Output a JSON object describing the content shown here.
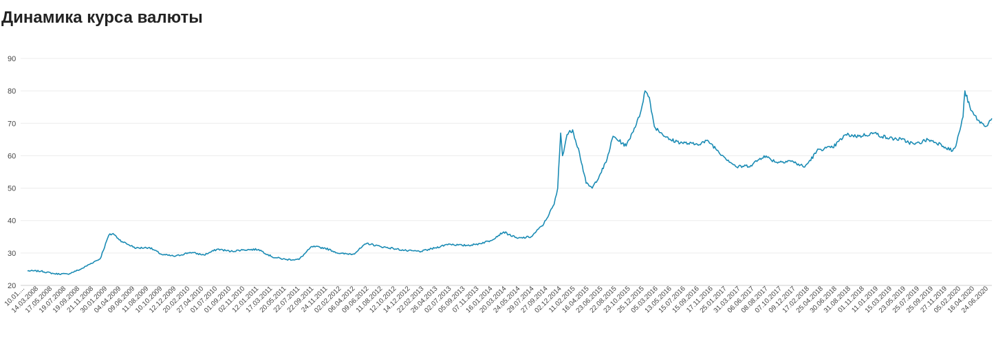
{
  "chart_data": {
    "type": "line",
    "title": "Динамика курса валюты",
    "xlabel": "",
    "ylabel": "",
    "ylim": [
      20,
      90
    ],
    "yticks": [
      20,
      30,
      40,
      50,
      60,
      70,
      80,
      90
    ],
    "grid": true,
    "color": "#1a8bb4",
    "xtick_labels": [
      "10.01....",
      "14.03.2008",
      "17.05.2008",
      "19.07.2008",
      "19.09.2008",
      "21.11.2008",
      "30.01.2009",
      "04.04.2009",
      "09.06.2009",
      "11.08.2009",
      "10.10.2009",
      "12.12.2009",
      "20.02.2010",
      "27.04.2010",
      "01.07.2010",
      "01.09.2010",
      "02.11.2010",
      "12.01.2011",
      "17.03.2011",
      "20.05.2011",
      "22.07.2011",
      "22.09.2011",
      "24.11.2011",
      "02.02.2012",
      "06.04.2012",
      "09.06.2012",
      "11.08.2012",
      "12.10.2012",
      "14.12.2012",
      "22.02.2013",
      "26.04.2013",
      "02.07.2013",
      "05.09.2013",
      "07.11.2013",
      "16.01.2014",
      "20.03.2014",
      "24.05.2014",
      "29.07.2014",
      "27.09.2014",
      "02.12.2014",
      "11.02.2015",
      "16.04.2015",
      "23.06.2015",
      "22.08.2015",
      "23.10.2015",
      "25.12.2015",
      "05.03.2016",
      "13.05.2016",
      "15.07.2016",
      "15.09.2016",
      "17.11.2016",
      "25.01.2017",
      "31.03.2017",
      "06.06.2017",
      "08.08.2017",
      "07.10.2017",
      "09.12.2017",
      "17.02.2018",
      "25.04.2018",
      "30.06.2018",
      "31.08.2018",
      "01.11.2018",
      "11.01.2019",
      "15.03.2019",
      "23.05.2019",
      "25.07.2019",
      "25.09.2019",
      "27.11.2019",
      "05.02.2020",
      "16.04.2020",
      "24.06.2020"
    ],
    "series": [
      {
        "x": [
          "2008-01-10",
          "2008-03-14",
          "2008-05-17",
          "2008-07-19",
          "2008-09-19",
          "2008-11-21",
          "2008-12-20",
          "2009-01-30",
          "2009-02-20",
          "2009-03-15",
          "2009-04-04",
          "2009-06-09",
          "2009-08-11",
          "2009-10-10",
          "2009-12-12",
          "2010-02-20",
          "2010-04-27",
          "2010-07-01",
          "2010-09-01",
          "2010-11-02",
          "2011-01-12",
          "2011-03-17",
          "2011-05-20",
          "2011-07-22",
          "2011-09-22",
          "2011-11-24",
          "2012-02-02",
          "2012-04-06",
          "2012-06-09",
          "2012-08-11",
          "2012-10-12",
          "2012-12-14",
          "2013-02-22",
          "2013-04-26",
          "2013-07-02",
          "2013-09-05",
          "2013-11-07",
          "2014-01-16",
          "2014-03-20",
          "2014-05-24",
          "2014-07-29",
          "2014-09-27",
          "2014-11-15",
          "2014-12-02",
          "2014-12-16",
          "2014-12-25",
          "2015-01-15",
          "2015-02-11",
          "2015-03-15",
          "2015-04-16",
          "2015-05-15",
          "2015-06-23",
          "2015-07-20",
          "2015-08-22",
          "2015-10-23",
          "2015-12-25",
          "2016-01-21",
          "2016-02-10",
          "2016-03-05",
          "2016-05-13",
          "2016-07-15",
          "2016-09-15",
          "2016-11-17",
          "2017-01-25",
          "2017-03-31",
          "2017-06-06",
          "2017-08-08",
          "2017-10-07",
          "2017-12-09",
          "2018-02-17",
          "2018-04-25",
          "2018-06-30",
          "2018-08-31",
          "2018-11-01",
          "2019-01-11",
          "2019-03-15",
          "2019-05-23",
          "2019-07-25",
          "2019-09-25",
          "2019-11-27",
          "2020-01-20",
          "2020-02-05",
          "2020-03-10",
          "2020-03-19",
          "2020-04-16",
          "2020-05-20",
          "2020-06-24",
          "2020-07-25"
        ],
        "values": [
          24.5,
          24.4,
          23.6,
          23.5,
          25.0,
          27.3,
          28.2,
          35.5,
          36.0,
          34.5,
          33.5,
          31.5,
          31.7,
          29.5,
          29.0,
          30.2,
          29.4,
          31.2,
          30.5,
          31.0,
          31.1,
          28.8,
          28.0,
          28.0,
          32.0,
          31.5,
          29.8,
          29.7,
          33.0,
          32.0,
          31.4,
          30.7,
          30.5,
          31.5,
          32.8,
          32.3,
          32.6,
          33.8,
          36.5,
          34.5,
          35.0,
          39.0,
          45.0,
          50.0,
          67.0,
          60.0,
          66.5,
          68.0,
          61.0,
          51.5,
          50.0,
          54.5,
          58.0,
          66.0,
          63.0,
          72.0,
          80.0,
          78.0,
          69.0,
          65.0,
          64.0,
          63.5,
          64.5,
          60.0,
          56.5,
          57.0,
          60.0,
          58.0,
          58.5,
          56.5,
          62.0,
          62.5,
          66.5,
          66.0,
          67.0,
          65.5,
          65.0,
          63.5,
          65.0,
          63.5,
          61.5,
          63.0,
          72.0,
          80.0,
          74.0,
          71.0,
          69.0,
          71.5
        ]
      }
    ]
  }
}
